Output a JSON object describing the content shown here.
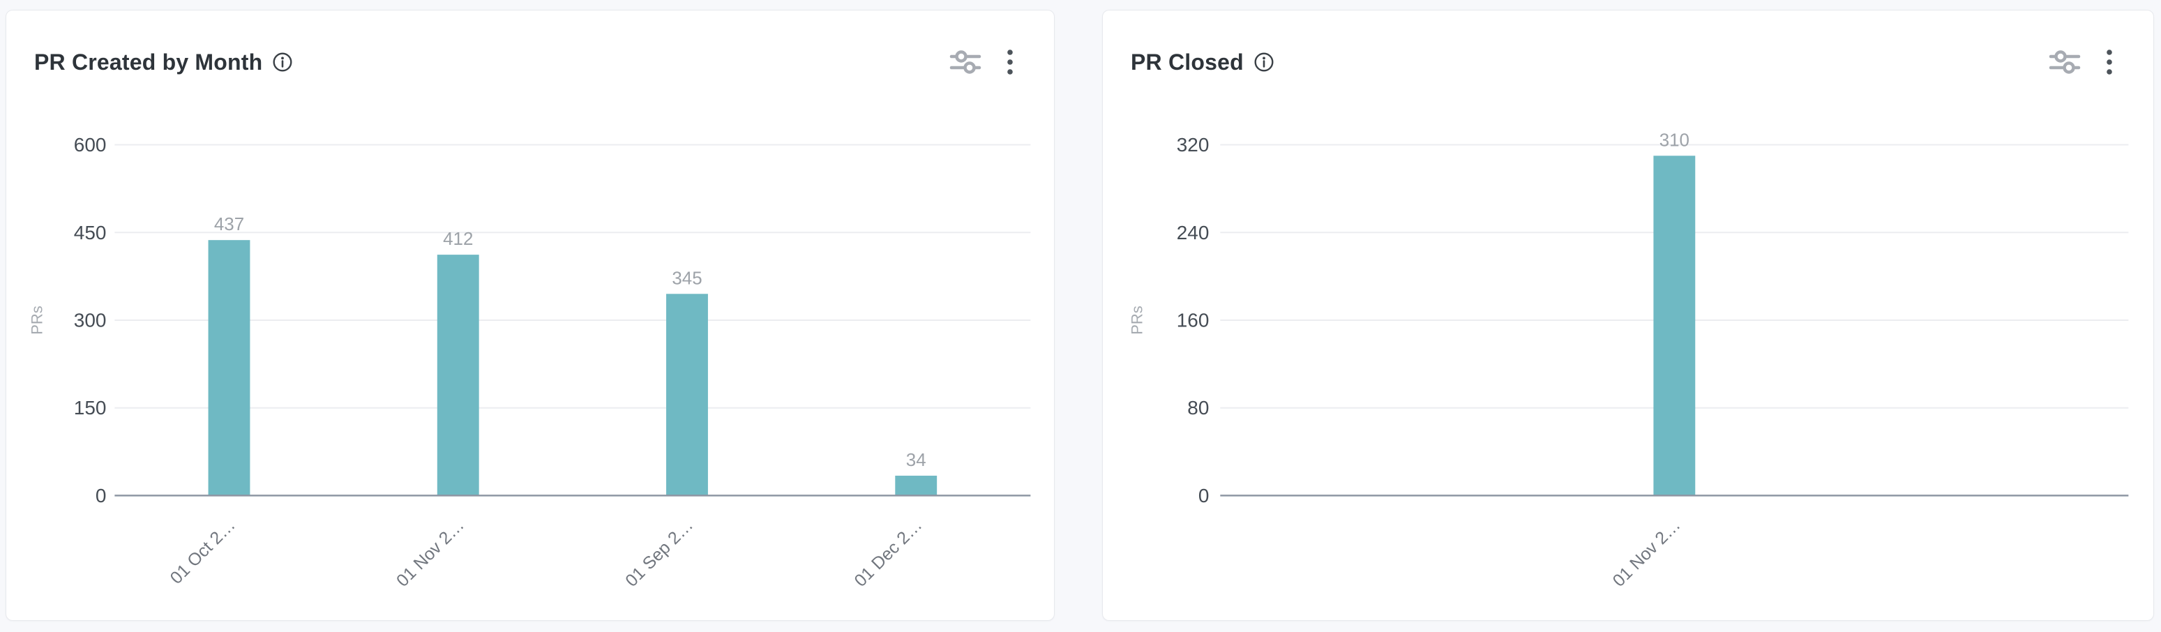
{
  "page": {
    "background_color": "#f7f8fb",
    "card_background": "#ffffff",
    "card_border_color": "#e7e9ed"
  },
  "cards": [
    {
      "title": "PR Created by Month",
      "icons": {
        "info": "info-icon",
        "filter": "sliders-icon",
        "menu": "kebab-menu-icon"
      }
    },
    {
      "title": "PR Closed",
      "icons": {
        "info": "info-icon",
        "filter": "sliders-icon",
        "menu": "kebab-menu-icon"
      }
    }
  ],
  "chart_data": [
    {
      "type": "bar",
      "title": "PR Created by Month",
      "categories": [
        "01 Oct 2…",
        "01 Nov 2…",
        "01 Sep 2…",
        "01 Dec 2…"
      ],
      "values": [
        437,
        412,
        345,
        34
      ],
      "value_labels": [
        "437",
        "412",
        "345",
        "34"
      ],
      "xlabel": "",
      "ylabel": "PRs",
      "ylim": [
        0,
        600
      ],
      "yticks": [
        0,
        150,
        300,
        450,
        600
      ],
      "grid": "horizontal",
      "legend": "none",
      "bar_color": "#6fb9c3",
      "value_label_color": "#9da2a8",
      "tick_label_color": "#454c54",
      "x_label_color": "#71767e",
      "grid_color": "#ecedf0",
      "axis_line_color": "#8e96a3"
    },
    {
      "type": "bar",
      "title": "PR Closed",
      "categories": [
        "01 Nov 2…"
      ],
      "values": [
        310
      ],
      "value_labels": [
        "310"
      ],
      "xlabel": "",
      "ylabel": "PRs",
      "ylim": [
        0,
        320
      ],
      "yticks": [
        0,
        80,
        160,
        240,
        320
      ],
      "grid": "horizontal",
      "legend": "none",
      "bar_color": "#6fb9c3",
      "value_label_color": "#9da2a8",
      "tick_label_color": "#454c54",
      "x_label_color": "#71767e",
      "grid_color": "#ecedf0",
      "axis_line_color": "#8e96a3"
    }
  ]
}
